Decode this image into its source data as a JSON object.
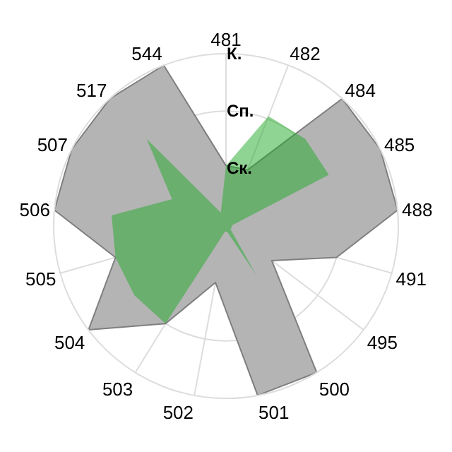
{
  "chart_data": {
    "type": "radar",
    "categories": [
      "481",
      "482",
      "484",
      "485",
      "488",
      "491",
      "495",
      "500",
      "501",
      "502",
      "503",
      "504",
      "505",
      "506",
      "507",
      "517",
      "544"
    ],
    "ylim": [
      0,
      3
    ],
    "yticks": [
      {
        "value": 1,
        "label": "Ск."
      },
      {
        "value": 2,
        "label": "Сп."
      },
      {
        "value": 3,
        "label": "К."
      }
    ],
    "grid": true,
    "series": [
      {
        "color": "#b4b4b4",
        "values": [
          1.05,
          1.05,
          3,
          3,
          3,
          2,
          1,
          3,
          3,
          1,
          2,
          3,
          2,
          3,
          3,
          3,
          3
        ]
      },
      {
        "color": "#22aa2a",
        "values": [
          1.05,
          2.05,
          2.05,
          2,
          0.1,
          0.1,
          0.1,
          1,
          0.1,
          0.1,
          2,
          2,
          2,
          2,
          1.05,
          2.05,
          0.25
        ]
      }
    ]
  }
}
